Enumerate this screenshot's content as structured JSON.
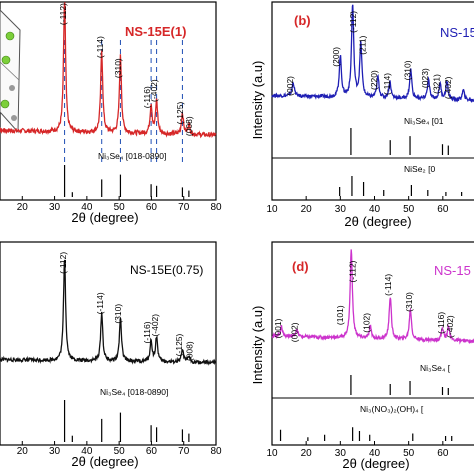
{
  "chart_data": [
    {
      "id": "a",
      "type": "line",
      "panel_label": "",
      "sample_label": "NS-15E(1)",
      "label_color": "#d62728",
      "xlabel": "2θ (degree)",
      "ylabel": "",
      "xlim": [
        10,
        80
      ],
      "xticks": [
        20,
        30,
        40,
        50,
        60,
        70,
        80
      ],
      "xtick_labels": [
        "20",
        "30",
        "40",
        "50",
        "60",
        "70",
        "80"
      ],
      "series": [
        {
          "color": "#d62728",
          "baseline": 0.15,
          "peaks": [
            [
              33.1,
              1.0
            ],
            [
              44.6,
              0.62
            ],
            [
              50.4,
              0.58
            ],
            [
              59.9,
              0.22
            ],
            [
              61.6,
              0.25
            ],
            [
              69.6,
              0.16
            ],
            [
              71.6,
              0.08
            ]
          ]
        }
      ],
      "annotations": [
        {
          "text": "(-112)",
          "x": 33.6,
          "y": 1.03
        },
        {
          "text": "(-114)",
          "x": 45.0,
          "y": 0.78
        },
        {
          "text": "(310)",
          "x": 50.6,
          "y": 0.62
        },
        {
          "text": "(-116)",
          "x": 59.6,
          "y": 0.4
        },
        {
          "text": "(-402)",
          "x": 61.8,
          "y": 0.45
        },
        {
          "text": "(-125)",
          "x": 69.8,
          "y": 0.28
        },
        {
          "text": "(008)",
          "x": 72.6,
          "y": 0.18
        }
      ],
      "reference": {
        "label": "Ni₃Se₄ [018-0890]",
        "lines": [
          [
            33.1,
            1.0
          ],
          [
            35.5,
            0.15
          ],
          [
            44.6,
            0.55
          ],
          [
            50.4,
            0.7
          ],
          [
            59.9,
            0.4
          ],
          [
            61.6,
            0.35
          ],
          [
            69.6,
            0.3
          ],
          [
            71.6,
            0.2
          ]
        ]
      }
    },
    {
      "id": "b",
      "type": "line",
      "panel_label": "(b)",
      "sample_label": "NS-15",
      "label_color": "#1f1fb4",
      "xlabel": "2θ (degree)",
      "ylabel": "Intensity (a.u)",
      "xlim": [
        10,
        70
      ],
      "xticks": [
        10,
        20,
        30,
        40,
        50,
        60
      ],
      "xtick_labels": [
        "10",
        "20",
        "30",
        "40",
        "50",
        "60"
      ],
      "series": [
        {
          "color": "#1f1fb4",
          "baseline": 0.2,
          "peaks": [
            [
              16.2,
              0.14
            ],
            [
              30.0,
              0.42
            ],
            [
              33.6,
              0.95
            ],
            [
              36.0,
              0.55
            ],
            [
              41.0,
              0.22
            ],
            [
              44.5,
              0.17
            ],
            [
              50.6,
              0.3
            ],
            [
              55.8,
              0.2
            ],
            [
              59.2,
              0.16
            ],
            [
              61.2,
              0.18
            ],
            [
              66.0,
              0.1
            ]
          ]
        }
      ],
      "annotations": [
        {
          "text": "(002)",
          "x": 16.2,
          "y": 0.3
        },
        {
          "text": "(200)",
          "x": 29.6,
          "y": 0.6
        },
        {
          "text": "(-112)",
          "x": 34.6,
          "y": 0.96
        },
        {
          "text": "(211)",
          "x": 37.4,
          "y": 0.72
        },
        {
          "text": "(220)",
          "x": 40.8,
          "y": 0.36
        },
        {
          "text": "(-114)",
          "x": 44.5,
          "y": 0.32
        },
        {
          "text": "(310)",
          "x": 50.6,
          "y": 0.46
        },
        {
          "text": "(023)",
          "x": 55.6,
          "y": 0.38
        },
        {
          "text": "(321)",
          "x": 59.0,
          "y": 0.32
        },
        {
          "text": "(-402)",
          "x": 62.4,
          "y": 0.28
        }
      ],
      "reference": {
        "label": "Ni₃Se₄ [01",
        "lines": [
          [
            33.1,
            1.0
          ],
          [
            44.6,
            0.55
          ],
          [
            50.4,
            0.7
          ],
          [
            59.9,
            0.4
          ],
          [
            61.6,
            0.35
          ]
        ]
      },
      "reference2": {
        "label": "NiSe₂ [0",
        "lines": [
          [
            29.8,
            0.45
          ],
          [
            33.4,
            1.0
          ],
          [
            36.8,
            0.7
          ],
          [
            42.7,
            0.3
          ],
          [
            50.8,
            0.55
          ],
          [
            55.6,
            0.3
          ],
          [
            60.9,
            0.2
          ],
          [
            65.5,
            0.2
          ]
        ]
      }
    },
    {
      "id": "c",
      "type": "line",
      "panel_label": "",
      "sample_label": "NS-15E(0.75)",
      "label_color": "#000000",
      "xlabel": "2θ (degree)",
      "ylabel": "",
      "xlim": [
        10,
        80
      ],
      "xticks": [
        20,
        30,
        40,
        50,
        60,
        70,
        80
      ],
      "xtick_labels": [
        "20",
        "30",
        "40",
        "50",
        "60",
        "70",
        "80"
      ],
      "series": [
        {
          "color": "#111111",
          "baseline": 0.12,
          "peaks": [
            [
              33.1,
              1.0
            ],
            [
              44.6,
              0.47
            ],
            [
              50.4,
              0.42
            ],
            [
              59.9,
              0.2
            ],
            [
              61.6,
              0.24
            ],
            [
              69.6,
              0.12
            ],
            [
              71.6,
              0.06
            ]
          ]
        }
      ],
      "annotations": [
        {
          "text": "(-112)",
          "x": 33.6,
          "y": 1.05
        },
        {
          "text": "(-114)",
          "x": 45.0,
          "y": 0.66
        },
        {
          "text": "(310)",
          "x": 50.6,
          "y": 0.56
        },
        {
          "text": "(-116)",
          "x": 59.6,
          "y": 0.38
        },
        {
          "text": "(-402)",
          "x": 62.0,
          "y": 0.45
        },
        {
          "text": "(-125)",
          "x": 69.4,
          "y": 0.26
        },
        {
          "text": "(008)",
          "x": 72.8,
          "y": 0.2
        }
      ],
      "reference": {
        "label": "Ni₃Se₄ [018-0890]",
        "lines": [
          [
            33.1,
            1.0
          ],
          [
            35.5,
            0.15
          ],
          [
            44.6,
            0.55
          ],
          [
            50.4,
            0.7
          ],
          [
            59.9,
            0.4
          ],
          [
            61.6,
            0.35
          ],
          [
            69.6,
            0.3
          ],
          [
            71.6,
            0.2
          ]
        ]
      }
    },
    {
      "id": "d",
      "type": "line",
      "panel_label": "(d)",
      "sample_label": "NS-15",
      "label_color": "#cc33cc",
      "xlabel": "2θ (degree)",
      "ylabel": "Intensity (a.u)",
      "xlim": [
        10,
        70
      ],
      "xticks": [
        10,
        20,
        30,
        40,
        50,
        60
      ],
      "xtick_labels": [
        "10",
        "20",
        "30",
        "40",
        "50",
        "60"
      ],
      "series": [
        {
          "color": "#cc33cc",
          "baseline": 0.22,
          "peaks": [
            [
              12.8,
              0.1
            ],
            [
              17.2,
              0.08
            ],
            [
              33.2,
              0.95
            ],
            [
              38.8,
              0.12
            ],
            [
              44.6,
              0.45
            ],
            [
              50.5,
              0.32
            ],
            [
              59.9,
              0.13
            ],
            [
              61.7,
              0.15
            ]
          ]
        }
      ],
      "annotations": [
        {
          "text": "(001)",
          "x": 12.6,
          "y": 0.3
        },
        {
          "text": "(002)",
          "x": 17.4,
          "y": 0.26
        },
        {
          "text": "(-112)",
          "x": 34.4,
          "y": 0.9
        },
        {
          "text": "(101)",
          "x": 30.8,
          "y": 0.44
        },
        {
          "text": "(102)",
          "x": 38.6,
          "y": 0.36
        },
        {
          "text": "(-114)",
          "x": 44.8,
          "y": 0.76
        },
        {
          "text": "(310)",
          "x": 51.0,
          "y": 0.58
        },
        {
          "text": "(-116)",
          "x": 60.4,
          "y": 0.36
        },
        {
          "text": "(-402)",
          "x": 63.0,
          "y": 0.32
        }
      ],
      "reference": {
        "label": "Ni₃Se₄ [",
        "lines": [
          [
            33.1,
            1.0
          ],
          [
            44.6,
            0.55
          ],
          [
            50.4,
            0.7
          ],
          [
            59.9,
            0.4
          ],
          [
            61.6,
            0.35
          ]
        ]
      },
      "reference2": {
        "label": "Ni₃(NO₃)₂(OH)₄ [",
        "lines": [
          [
            12.5,
            0.45
          ],
          [
            20.5,
            0.15
          ],
          [
            25.4,
            0.25
          ],
          [
            33.6,
            0.55
          ],
          [
            35.6,
            0.4
          ],
          [
            38.6,
            0.25
          ],
          [
            51.2,
            0.3
          ],
          [
            60.8,
            0.2
          ],
          [
            62.6,
            0.2
          ]
        ]
      }
    }
  ]
}
